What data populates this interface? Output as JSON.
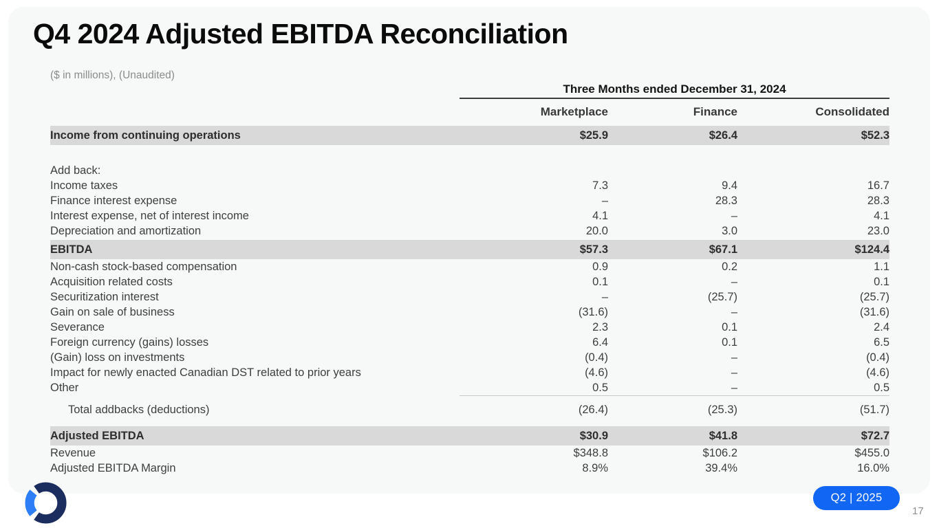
{
  "slide": {
    "title": "Q4 2024 Adjusted EBITDA Reconciliation",
    "subtitle": "($ in millions), (Unaudited)",
    "badge": "Q2 | 2025",
    "page_number": "17"
  },
  "colors": {
    "badge_blue": "#1166f4",
    "logo_navy": "#1b2c5e",
    "logo_blue": "#2d7ef7",
    "highlight_gray": "#d9d9d9",
    "card_gray": "#f7f8f8"
  },
  "table": {
    "period_header": "Three Months ended December 31, 2024",
    "columns": [
      "Marketplace",
      "Finance",
      "Consolidated"
    ],
    "rows": [
      {
        "type": "highlight",
        "label": "Income from continuing operations",
        "values": [
          "$25.9",
          "$26.4",
          "$52.3"
        ]
      },
      {
        "type": "spacer"
      },
      {
        "type": "normal",
        "label": "Add back:",
        "values": [
          "",
          "",
          ""
        ]
      },
      {
        "type": "normal",
        "label": "Income taxes",
        "values": [
          "7.3",
          "9.4",
          "16.7"
        ]
      },
      {
        "type": "normal",
        "label": "Finance interest expense",
        "values": [
          "–",
          "28.3",
          "28.3"
        ]
      },
      {
        "type": "normal",
        "label": "Interest expense, net of interest income",
        "values": [
          "4.1",
          "–",
          "4.1"
        ]
      },
      {
        "type": "normal",
        "label": "Depreciation and amortization",
        "values": [
          "20.0",
          "3.0",
          "23.0"
        ]
      },
      {
        "type": "highlight ebitda-gap",
        "label": "EBITDA",
        "values": [
          "$57.3",
          "$67.1",
          "$124.4"
        ]
      },
      {
        "type": "normal",
        "label": "Non-cash stock-based compensation",
        "values": [
          "0.9",
          "0.2",
          "1.1"
        ]
      },
      {
        "type": "normal",
        "label": "Acquisition related costs",
        "values": [
          "0.1",
          "–",
          "0.1"
        ]
      },
      {
        "type": "normal",
        "label": "Securitization interest",
        "values": [
          "–",
          "(25.7)",
          "(25.7)"
        ]
      },
      {
        "type": "normal",
        "label": "Gain on sale of business",
        "values": [
          "(31.6)",
          "–",
          "(31.6)"
        ]
      },
      {
        "type": "normal",
        "label": "Severance",
        "values": [
          "2.3",
          "0.1",
          "2.4"
        ]
      },
      {
        "type": "normal",
        "label": "Foreign currency (gains) losses",
        "values": [
          "6.4",
          "0.1",
          "6.5"
        ]
      },
      {
        "type": "normal",
        "label": "(Gain) loss on investments",
        "values": [
          "(0.4)",
          "–",
          "(0.4)"
        ]
      },
      {
        "type": "normal",
        "label": "Impact for newly enacted Canadian DST related to prior years",
        "values": [
          "(4.6)",
          "–",
          "(4.6)"
        ]
      },
      {
        "type": "normal",
        "label": "Other",
        "values": [
          "0.5",
          "–",
          "0.5"
        ]
      },
      {
        "type": "divider"
      },
      {
        "type": "subtotal",
        "label": "Total addbacks (deductions)",
        "values": [
          "(26.4)",
          "(25.3)",
          "(51.7)"
        ]
      },
      {
        "type": "highlight",
        "label": "Adjusted EBITDA",
        "values": [
          "$30.9",
          "$41.8",
          "$72.7"
        ]
      },
      {
        "type": "normal",
        "label": "Revenue",
        "values": [
          "$348.8",
          "$106.2",
          "$455.0"
        ]
      },
      {
        "type": "normal",
        "label": "Adjusted EBITDA Margin",
        "values": [
          "8.9%",
          "39.4%",
          "16.0%"
        ]
      }
    ]
  }
}
